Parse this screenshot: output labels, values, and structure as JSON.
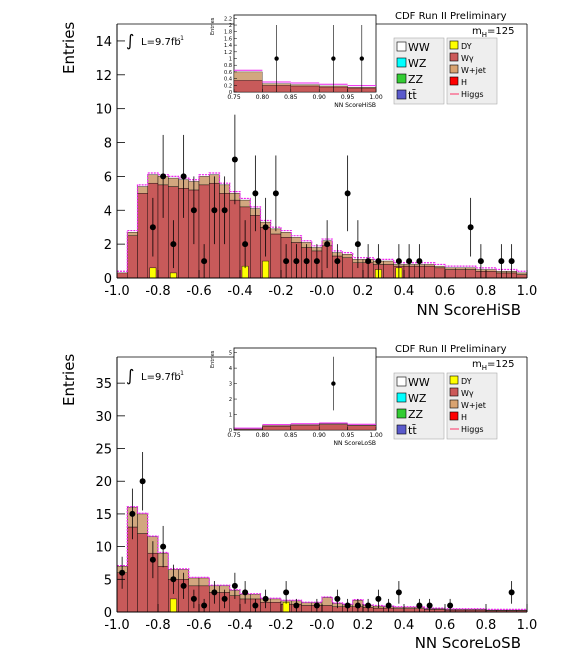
{
  "figure_header": "CDF Run II Preliminary",
  "mass_label_prefix": "m",
  "mass_label_sub": "H",
  "mass_label_value": "=125",
  "lumi_label": "L=9.7fb",
  "lumi_sup": "-1",
  "legend": [
    {
      "label": "WW",
      "color": "#ffffff"
    },
    {
      "label": "DY",
      "color": "#ffff00"
    },
    {
      "label": "WZ",
      "color": "#00ffff"
    },
    {
      "label": "Wγ",
      "color": "#cc5a5a"
    },
    {
      "label": "ZZ",
      "color": "#33cc33"
    },
    {
      "label": "W+jet",
      "color": "#d9a370"
    },
    {
      "label": "tt̄",
      "color": "#5a5acc"
    },
    {
      "label": "H",
      "color": "#ff0000"
    },
    {
      "label": "Higgs",
      "color": "#ff3366"
    }
  ],
  "colors": {
    "wgamma": "#c85a5a",
    "wjet": "#d2a77f",
    "dy": "#ffff00",
    "uncertainty": "#ee22ee",
    "data": "#000000"
  },
  "chart_data": [
    {
      "type": "bar",
      "xlabel": "NN ScoreHiSB",
      "ylabel": "Entries",
      "xlim": [
        -1.0,
        1.0
      ],
      "ylim": [
        0,
        15
      ],
      "yticks": [
        "0",
        "2",
        "4",
        "6",
        "8",
        "10",
        "12",
        "14"
      ],
      "xticks": [
        "-1.0",
        "-0.8",
        "-0.6",
        "-0.4",
        "-0.2",
        "-0.0",
        "0.2",
        "0.4",
        "0.6",
        "0.8",
        "1.0"
      ],
      "bin_edges_start": -1.0,
      "bin_width": 0.05,
      "series": [
        {
          "name": "Wγ",
          "values": [
            0.3,
            2.5,
            5.0,
            5.6,
            5.5,
            5.4,
            5.3,
            5.2,
            5.5,
            5.6,
            5.0,
            4.6,
            4.2,
            3.7,
            3.0,
            2.6,
            2.4,
            2.1,
            1.8,
            1.6,
            1.9,
            1.3,
            1.2,
            0.9,
            0.9,
            0.8,
            0.8,
            0.7,
            0.7,
            0.7,
            0.7,
            0.6,
            0.5,
            0.5,
            0.5,
            0.4,
            0.4,
            0.3,
            0.3,
            0.2
          ]
        },
        {
          "name": "W+jet",
          "values": [
            0.0,
            0.2,
            0.4,
            0.5,
            0.5,
            0.5,
            0.5,
            0.5,
            0.5,
            0.5,
            0.5,
            0.4,
            0.4,
            0.4,
            0.3,
            0.3,
            0.3,
            0.3,
            0.3,
            0.2,
            0.3,
            0.2,
            0.2,
            0.2,
            0.2,
            0.2,
            0.2,
            0.1,
            0.1,
            0.1,
            0.1,
            0.1,
            0.1,
            0.1,
            0.1,
            0.1,
            0.1,
            0.1,
            0.1,
            0.1
          ]
        },
        {
          "name": "DY",
          "values": [
            0,
            0,
            0,
            0.6,
            0,
            0.3,
            0,
            0,
            0,
            0,
            0,
            0,
            0.7,
            0,
            1.0,
            0,
            0,
            0,
            0,
            0,
            0,
            0,
            0,
            0,
            0,
            0.5,
            0,
            0.6,
            0,
            0,
            0,
            0,
            0,
            0,
            0,
            0,
            0,
            0,
            0,
            0
          ]
        }
      ],
      "data_points": {
        "x": [
          -0.825,
          -0.775,
          -0.725,
          -0.675,
          -0.625,
          -0.575,
          -0.525,
          -0.475,
          -0.425,
          -0.375,
          -0.325,
          -0.275,
          -0.225,
          -0.175,
          -0.125,
          -0.075,
          -0.025,
          0.025,
          0.075,
          0.125,
          0.175,
          0.225,
          0.275,
          0.375,
          0.425,
          0.475,
          0.725,
          0.775,
          0.875,
          0.925
        ],
        "y": [
          3,
          6,
          2,
          6,
          4,
          1,
          4,
          4,
          7,
          2,
          5,
          3,
          5,
          1,
          1,
          1,
          1,
          2,
          1,
          5,
          2,
          1,
          1,
          1,
          1,
          1,
          3,
          1,
          1,
          1
        ]
      }
    },
    {
      "type": "bar",
      "xlabel": "NN ScoreLoSB",
      "ylabel": "Entries",
      "xlim": [
        -1.0,
        1.0
      ],
      "ylim": [
        0,
        39
      ],
      "yticks": [
        "0",
        "5",
        "10",
        "15",
        "20",
        "25",
        "30",
        "35"
      ],
      "xticks": [
        "-1.0",
        "-0.8",
        "-0.6",
        "-0.4",
        "-0.2",
        "-0.0",
        "0.2",
        "0.4",
        "0.6",
        "0.8",
        "1.0"
      ],
      "bin_edges_start": -1.0,
      "bin_width": 0.05,
      "series": [
        {
          "name": "Wγ",
          "values": [
            6,
            13,
            12,
            9,
            7,
            5,
            5,
            4,
            4,
            3,
            3,
            2.5,
            2,
            2,
            1.5,
            1.5,
            1.2,
            1.2,
            1,
            1,
            1,
            0.8,
            0.8,
            0.8,
            0.7,
            0.6,
            0.6,
            0.5,
            0.5,
            0.5,
            0.4,
            0.4,
            0.3,
            0.3,
            0.3,
            0.3,
            0.2,
            0.2,
            0.2,
            0.2
          ]
        },
        {
          "name": "W+jet",
          "values": [
            1,
            3,
            3,
            2.5,
            2,
            1.5,
            1.5,
            1.2,
            1.2,
            1,
            1,
            0.8,
            0.7,
            0.7,
            0.5,
            0.5,
            0.5,
            0.5,
            0.4,
            0.4,
            1.2,
            0.5,
            0.3,
            1.0,
            0.3,
            0.3,
            0.2,
            0.2,
            0.2,
            0.2,
            0.1,
            0.1,
            0.1,
            0.1,
            0.1,
            0.1,
            0.1,
            0.1,
            0.1,
            0.1
          ]
        },
        {
          "name": "DY",
          "values": [
            0,
            0,
            0,
            0,
            0,
            2,
            0,
            0,
            0,
            0,
            0,
            0,
            0,
            0,
            0,
            0,
            1.5,
            0,
            0,
            0,
            0,
            0,
            0,
            0,
            0,
            0,
            0,
            0,
            0,
            0,
            0,
            0,
            0,
            0,
            0,
            0,
            0,
            0,
            0,
            0
          ]
        }
      ],
      "data_points": {
        "x": [
          -0.975,
          -0.925,
          -0.875,
          -0.825,
          -0.775,
          -0.725,
          -0.675,
          -0.625,
          -0.575,
          -0.525,
          -0.475,
          -0.425,
          -0.375,
          -0.325,
          -0.275,
          -0.175,
          -0.125,
          -0.025,
          0.075,
          0.125,
          0.175,
          0.225,
          0.275,
          0.325,
          0.375,
          0.475,
          0.525,
          0.625,
          0.925
        ],
        "y": [
          6,
          15,
          20,
          8,
          10,
          5,
          4,
          2,
          1,
          3,
          2,
          4,
          3,
          1,
          2,
          3,
          1,
          1,
          2,
          1,
          1,
          1,
          2,
          1,
          3,
          1,
          1,
          1,
          3
        ]
      }
    }
  ],
  "insets": [
    {
      "xlabel": "NN ScoreHiSB",
      "ylabel": "Entries",
      "xlim": [
        0.75,
        1.0
      ],
      "ylim": [
        0,
        2.3
      ],
      "yticks": [
        "0",
        "0.2",
        "0.4",
        "0.6",
        "0.8",
        "1",
        "1.2",
        "1.4",
        "1.6",
        "1.8",
        "2",
        "2.2"
      ],
      "xticks": [
        "0.75",
        "0.80",
        "0.85",
        "0.90",
        "0.95",
        "1.00"
      ],
      "wgamma": [
        0.35,
        0.2,
        0.18,
        0.15,
        0.12
      ],
      "wjet": [
        0.25,
        0.05,
        0.04,
        0.03,
        0.02
      ],
      "data_x": [
        0.825,
        0.925,
        0.975
      ],
      "data_y": [
        1,
        1,
        1
      ]
    },
    {
      "xlabel": "NN ScoreLoSB",
      "ylabel": "Entries",
      "xlim": [
        0.75,
        1.0
      ],
      "ylim": [
        0,
        5.3
      ],
      "yticks": [
        "0",
        "1",
        "2",
        "3",
        "4",
        "5"
      ],
      "xticks": [
        "0.75",
        "0.80",
        "0.85",
        "0.90",
        "0.95",
        "1.00"
      ],
      "wgamma": [
        0.05,
        0.25,
        0.3,
        0.35,
        0.28
      ],
      "wjet": [
        0.02,
        0.05,
        0.05,
        0.05,
        0.04
      ],
      "data_x": [
        0.925
      ],
      "data_y": [
        3
      ]
    }
  ]
}
